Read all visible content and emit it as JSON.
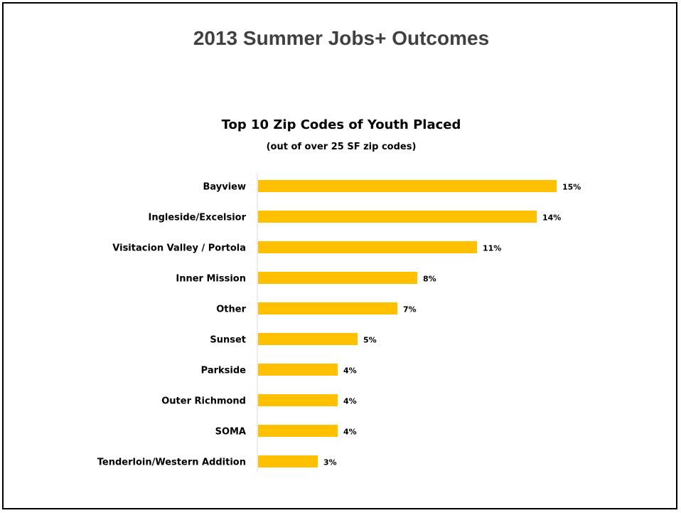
{
  "slide": {
    "title": "2013 Summer Jobs+ Outcomes"
  },
  "chart_data": {
    "type": "bar",
    "orientation": "horizontal",
    "title": "Top 10 Zip Codes of Youth Placed",
    "subtitle": "(out of over 25 SF zip codes)",
    "categories": [
      "Bayview",
      "Ingleside/Excelsior",
      "Visitacion Valley / Portola",
      "Inner Mission",
      "Other",
      "Sunset",
      "Parkside",
      "Outer Richmond",
      "SOMA",
      "Tenderloin/Western Addition"
    ],
    "values": [
      15,
      14,
      11,
      8,
      7,
      5,
      4,
      4,
      4,
      3
    ],
    "value_labels": [
      "15%",
      "14%",
      "11%",
      "8%",
      "7%",
      "5%",
      "4%",
      "4%",
      "4%",
      "3%"
    ],
    "xlim": [
      0,
      16
    ],
    "grid": false,
    "legend": "none",
    "bar_color": "#FFC000"
  }
}
